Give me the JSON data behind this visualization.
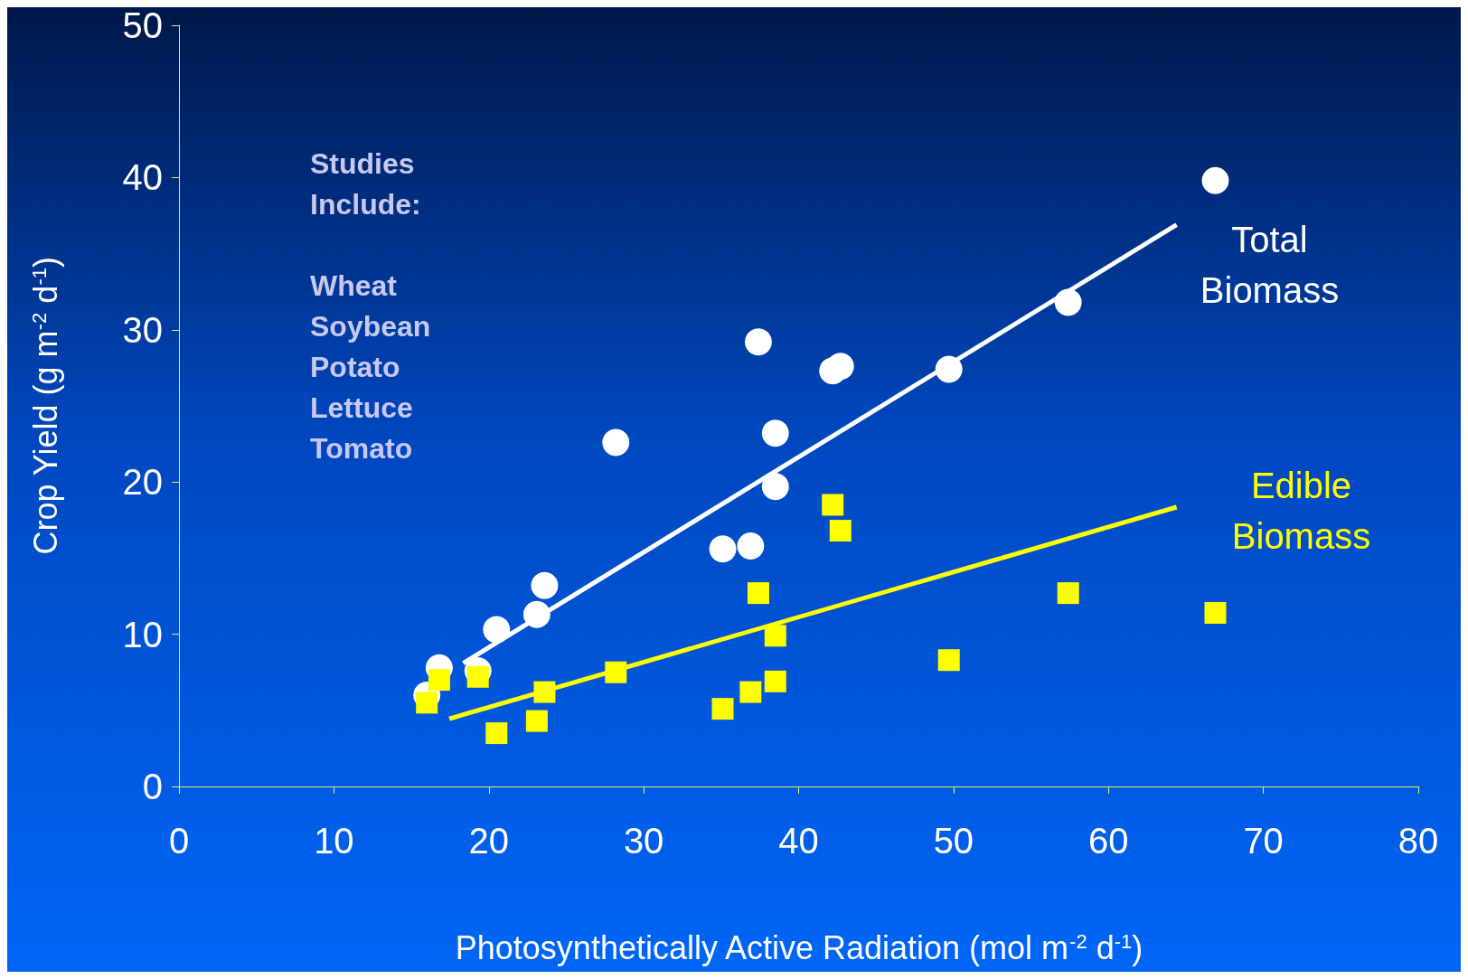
{
  "chart_data": {
    "type": "scatter",
    "xlabel": "Photosynthetically Active Radiation (mol m$^{-2}$ d$^{-1}$)",
    "ylabel": "Crop Yield (g m$^{-2}$ d$^{-1}$)",
    "xlim": [
      0,
      80
    ],
    "xticks": [
      0,
      10,
      20,
      30,
      40,
      50,
      60,
      70,
      80
    ],
    "ylim": [
      0,
      50
    ],
    "yticks": [
      0,
      10,
      20,
      30,
      40,
      50
    ],
    "grid": false,
    "legend": false,
    "annotations": [
      "Studies\nInclude:\n\nWheat\nSoybean\nPotato\nLettuce\nTomato"
    ],
    "series": [
      {
        "name": "Total Biomass",
        "color": "#ffffff",
        "marker": "circle",
        "x": [
          16.0,
          16.8,
          19.3,
          20.5,
          23.1,
          23.6,
          28.2,
          35.1,
          36.9,
          37.4,
          38.5,
          38.5,
          42.2,
          42.7,
          49.7,
          57.4,
          66.9
        ],
        "values": [
          6.0,
          7.8,
          7.6,
          10.3,
          11.3,
          13.2,
          22.6,
          15.6,
          15.8,
          29.2,
          19.7,
          23.2,
          27.3,
          27.6,
          27.4,
          31.8,
          39.8
        ]
      },
      {
        "name": "Edible Biomass",
        "color": "#ffff00",
        "marker": "square",
        "x": [
          16.0,
          16.8,
          19.3,
          20.5,
          23.1,
          23.6,
          28.2,
          35.1,
          36.9,
          37.4,
          38.5,
          38.5,
          42.2,
          42.7,
          49.7,
          57.4,
          66.9
        ],
        "values": [
          5.5,
          7.0,
          7.2,
          3.5,
          4.3,
          6.2,
          7.5,
          5.1,
          6.2,
          12.7,
          9.9,
          6.9,
          18.5,
          16.8,
          8.3,
          12.7,
          11.4
        ]
      },
      {
        "type": "line",
        "color": "#ffffff",
        "x": [
          18.35,
          64.4
        ],
        "values": [
          8.1,
          36.9
        ]
      },
      {
        "type": "line",
        "color": "#ffff00",
        "x": [
          17.45,
          64.4
        ],
        "values": [
          4.45,
          18.35
        ]
      }
    ]
  }
}
